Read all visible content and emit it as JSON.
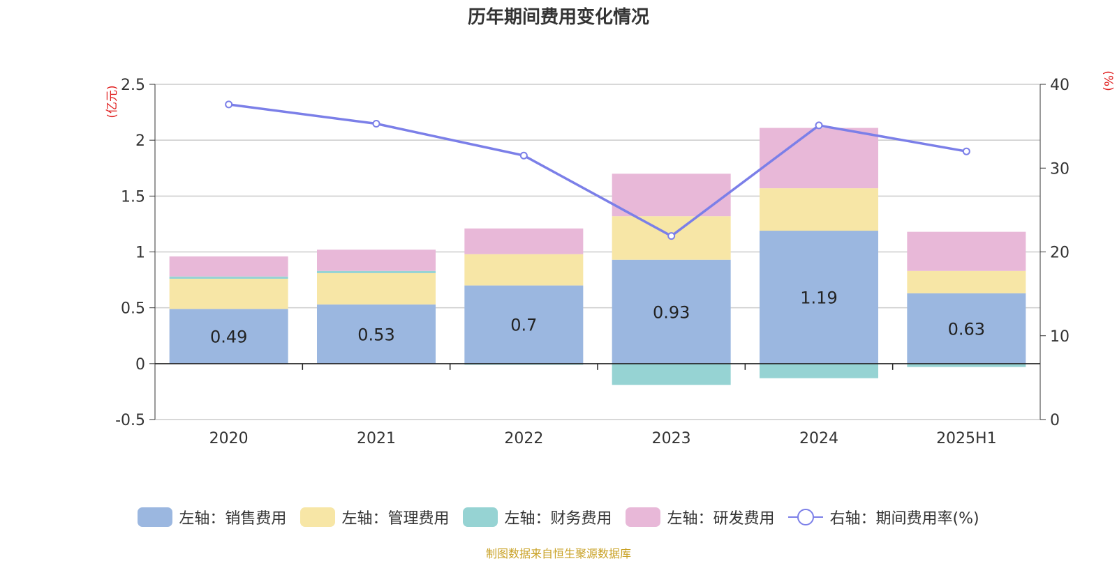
{
  "title": "历年期间费用变化情况",
  "source_note": "制图数据来自恒生聚源数据库",
  "chart_data": {
    "type": "bar",
    "stacked": true,
    "categories": [
      "2020",
      "2021",
      "2022",
      "2023",
      "2024",
      "2025H1"
    ],
    "left_axis": {
      "unit_label": "(亿元)",
      "ylim": [
        -0.5,
        2.5
      ],
      "ticks": [
        "-0.5",
        "0",
        "0.5",
        "1",
        "1.5",
        "2",
        "2.5"
      ]
    },
    "right_axis": {
      "unit_label": "(%)",
      "ylim": [
        0,
        40
      ],
      "ticks": [
        "0",
        "10",
        "20",
        "30",
        "40"
      ]
    },
    "series": [
      {
        "name": "左轴：销售费用",
        "axis": "left",
        "type": "bar",
        "color": "#9bb7e0",
        "values": [
          0.49,
          0.53,
          0.7,
          0.93,
          1.19,
          0.63
        ],
        "show_labels": true
      },
      {
        "name": "左轴：管理费用",
        "axis": "left",
        "type": "bar",
        "color": "#f7e6a6",
        "values": [
          0.27,
          0.28,
          0.28,
          0.39,
          0.38,
          0.2
        ]
      },
      {
        "name": "左轴：财务费用",
        "axis": "left",
        "type": "bar",
        "color": "#96d3d3",
        "values": [
          0.02,
          0.02,
          -0.01,
          -0.19,
          -0.13,
          -0.03
        ]
      },
      {
        "name": "左轴：研发费用",
        "axis": "left",
        "type": "bar",
        "color": "#e8b8d8",
        "values": [
          0.18,
          0.19,
          0.23,
          0.38,
          0.54,
          0.35
        ]
      },
      {
        "name": "右轴：期间费用率(%)",
        "axis": "right",
        "type": "line",
        "color": "#7b7fe8",
        "values": [
          37.6,
          35.3,
          31.5,
          21.9,
          35.1,
          32.0
        ]
      }
    ],
    "grid": true,
    "legend_position": "bottom"
  }
}
